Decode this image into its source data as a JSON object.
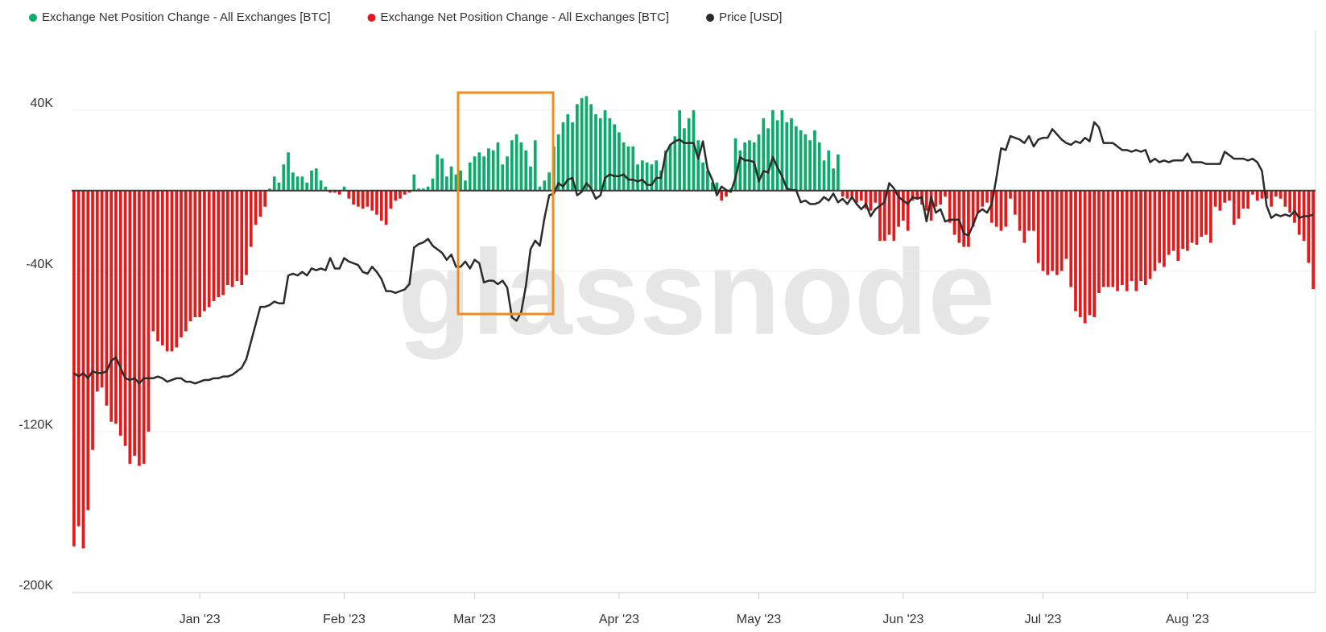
{
  "chart_data": {
    "type": "bar",
    "watermark": "glassnode",
    "ylim": [
      -200000,
      80000
    ],
    "yticks": [
      {
        "value": 40000,
        "label": "40K"
      },
      {
        "value": -40000,
        "label": "-40K"
      },
      {
        "value": -120000,
        "label": "-120K"
      },
      {
        "value": -200000,
        "label": "-200K"
      }
    ],
    "y2lim": [
      4500,
      36800
    ],
    "grid": true,
    "categories": [
      null,
      null,
      null,
      null,
      null,
      null,
      null,
      null,
      null,
      null,
      null,
      null,
      null,
      null,
      null,
      null,
      null,
      null,
      null,
      null,
      null,
      null,
      null,
      null,
      null,
      null,
      null,
      "Jan '23",
      null,
      null,
      null,
      null,
      null,
      null,
      null,
      null,
      null,
      null,
      null,
      null,
      null,
      null,
      null,
      null,
      null,
      null,
      null,
      null,
      null,
      null,
      null,
      null,
      null,
      null,
      null,
      null,
      null,
      null,
      "Feb '23",
      null,
      null,
      null,
      null,
      null,
      null,
      null,
      null,
      null,
      null,
      null,
      null,
      null,
      null,
      null,
      null,
      null,
      null,
      null,
      null,
      null,
      null,
      null,
      null,
      null,
      null,
      null,
      "Mar '23",
      null,
      null,
      null,
      null,
      null,
      null,
      null,
      null,
      null,
      null,
      null,
      null,
      null,
      null,
      null,
      null,
      null,
      null,
      null,
      null,
      null,
      null,
      null,
      null,
      null,
      null,
      null,
      null,
      null,
      null,
      "Apr '23",
      null,
      null,
      null,
      null,
      null,
      null,
      null,
      null,
      null,
      null,
      null,
      null,
      null,
      null,
      null,
      null,
      null,
      null,
      null,
      null,
      null,
      null,
      null,
      null,
      null,
      null,
      null,
      null,
      null,
      "May '23",
      null,
      null,
      null,
      null,
      null,
      null,
      null,
      null,
      null,
      null,
      null,
      null,
      null,
      null,
      null,
      null,
      null,
      null,
      null,
      null,
      null,
      null,
      null,
      null,
      null,
      null,
      null,
      null,
      null,
      null,
      "Jun '23",
      null,
      null,
      null,
      null,
      null,
      null,
      null,
      null,
      null,
      null,
      null,
      null,
      null,
      null,
      null,
      null,
      null,
      null,
      null,
      null,
      null,
      null,
      null,
      null,
      null,
      null,
      null,
      null,
      null,
      "Jul '23",
      null,
      null,
      null,
      null,
      null,
      null,
      null,
      null,
      null,
      null,
      null,
      null,
      null,
      null,
      null,
      null,
      null,
      null,
      null,
      null,
      null,
      null,
      null,
      null,
      null,
      null,
      null,
      null,
      null,
      null,
      "Aug '23",
      null,
      null,
      null,
      null,
      null,
      null,
      null,
      null,
      null,
      null,
      null,
      null,
      null,
      null,
      null,
      null,
      null,
      null,
      null,
      null,
      null,
      null,
      null,
      null,
      null,
      null,
      null
    ],
    "series": [
      {
        "name": "Exchange Net Position Change - All Exchanges [BTC]",
        "color": "#0bab6b",
        "values": [
          null,
          null,
          null,
          null,
          null,
          null,
          null,
          null,
          null,
          null,
          null,
          null,
          null,
          null,
          null,
          null,
          null,
          null,
          null,
          null,
          null,
          null,
          null,
          null,
          null,
          null,
          null,
          null,
          null,
          null,
          null,
          null,
          null,
          null,
          null,
          null,
          null,
          null,
          null,
          null,
          null,
          null,
          1000,
          7000,
          4000,
          13000,
          19000,
          9000,
          7000,
          7000,
          4000,
          10000,
          11000,
          5000,
          2000,
          null,
          null,
          null,
          2000,
          null,
          null,
          null,
          null,
          null,
          null,
          null,
          null,
          null,
          null,
          null,
          null,
          null,
          null,
          8000,
          1000,
          1000,
          2000,
          6000,
          18000,
          16000,
          7000,
          12000,
          8000,
          10000,
          5000,
          14000,
          17000,
          19000,
          17000,
          21000,
          20000,
          24000,
          13000,
          17000,
          25000,
          28000,
          24000,
          20000,
          12000,
          25000,
          2000,
          5000,
          9000,
          22000,
          28000,
          34000,
          38000,
          34000,
          43000,
          46000,
          47000,
          43000,
          38000,
          36000,
          40000,
          36000,
          33000,
          29000,
          24000,
          22000,
          22000,
          13000,
          15000,
          14000,
          13000,
          15000,
          10000,
          20000,
          23000,
          27000,
          40000,
          31000,
          36000,
          40000,
          25000,
          14000,
          10000,
          4000,
          4000,
          null,
          null,
          1000,
          26000,
          20000,
          24000,
          25000,
          24000,
          28000,
          36000,
          31000,
          40000,
          35000,
          40000,
          34000,
          36000,
          32000,
          30000,
          28000,
          25000,
          30000,
          24000,
          15000,
          20000,
          11000,
          18000,
          null,
          null,
          null,
          null,
          null,
          null,
          null,
          null,
          null,
          null,
          null,
          null,
          null,
          null,
          null,
          null,
          null,
          null,
          null,
          null,
          null,
          null,
          null,
          null,
          null,
          null,
          null,
          null,
          null,
          null,
          null,
          null,
          null,
          null,
          null,
          null,
          null,
          null,
          null,
          null,
          null,
          null,
          null,
          null,
          null,
          null,
          null,
          null,
          null,
          null,
          null,
          null,
          null,
          null,
          null,
          null,
          null,
          null,
          null,
          null,
          null,
          null,
          null,
          null,
          null,
          null,
          null,
          null,
          null,
          null,
          null,
          null,
          null,
          null,
          null,
          null,
          null,
          null,
          null,
          null,
          null,
          null,
          null,
          null,
          null,
          null,
          null,
          null,
          null,
          null,
          null,
          null,
          null,
          null,
          null,
          null,
          null,
          null,
          null,
          null,
          null,
          null
        ]
      },
      {
        "name": "Exchange Net Position Change - All Exchanges [BTC]",
        "color": "#e41a1a",
        "values": [
          -177000,
          -167000,
          -178000,
          -159000,
          -129000,
          -100000,
          -98000,
          -107000,
          -115000,
          -116000,
          -122000,
          -127000,
          -136000,
          -132000,
          -137000,
          -136000,
          -120000,
          -70000,
          -75000,
          -77000,
          -80000,
          -80000,
          -78000,
          -73000,
          -70000,
          -65000,
          -63000,
          -63000,
          -60000,
          -58000,
          -55000,
          -53000,
          -52000,
          -47000,
          -48000,
          -45000,
          -47000,
          -42000,
          -28000,
          -17000,
          -13000,
          -8000,
          null,
          null,
          null,
          null,
          null,
          null,
          null,
          null,
          null,
          null,
          null,
          null,
          null,
          -1000,
          -1000,
          -2000,
          null,
          -4000,
          -7000,
          -8000,
          -9000,
          -8000,
          -10000,
          -12000,
          -15000,
          -17000,
          -9000,
          -5000,
          -4000,
          -2000,
          -1000,
          null,
          null,
          null,
          null,
          null,
          null,
          null,
          null,
          null,
          null,
          null,
          null,
          null,
          null,
          null,
          null,
          null,
          null,
          null,
          null,
          null,
          null,
          null,
          null,
          null,
          null,
          null,
          null,
          null,
          null,
          null,
          null,
          null,
          null,
          null,
          null,
          null,
          null,
          null,
          null,
          null,
          null,
          null,
          null,
          null,
          null,
          null,
          null,
          null,
          null,
          null,
          null,
          null,
          null,
          null,
          null,
          null,
          null,
          null,
          null,
          null,
          null,
          null,
          null,
          null,
          null,
          -5000,
          -3000,
          null,
          null,
          null,
          null,
          null,
          null,
          null,
          null,
          null,
          null,
          null,
          null,
          null,
          null,
          null,
          null,
          null,
          null,
          null,
          null,
          null,
          null,
          null,
          null,
          -3000,
          -4000,
          -3000,
          -6000,
          -5000,
          -9000,
          -10000,
          -6000,
          -25000,
          -25000,
          -22000,
          -25000,
          -18000,
          -15000,
          -20000,
          -5000,
          -4000,
          -7000,
          -10000,
          -15000,
          -8000,
          -7000,
          -3000,
          -16000,
          -22000,
          -26000,
          -28000,
          -28000,
          -18000,
          -11000,
          -8000,
          -6000,
          -16000,
          -18000,
          -20000,
          -18000,
          -4000,
          -12000,
          -20000,
          -26000,
          -20000,
          -20000,
          -36000,
          -40000,
          -42000,
          -40000,
          -42000,
          -40000,
          -34000,
          -48000,
          -60000,
          -63000,
          -66000,
          -62000,
          -63000,
          -51000,
          -48000,
          -48000,
          -48000,
          -50000,
          -47000,
          -50000,
          -45000,
          -50000,
          -45000,
          -47000,
          -44000,
          -40000,
          -36000,
          -38000,
          -32000,
          -30000,
          -35000,
          -29000,
          -30000,
          -26000,
          -27000,
          -23000,
          -22000,
          -26000,
          -8000,
          -10000,
          -6000,
          -5000,
          -17000,
          -14000,
          -9000,
          -9000,
          -2000,
          -5000,
          -4000,
          -4000,
          -8000,
          -3000,
          -4000,
          -8000,
          -11000,
          -16000,
          -22000,
          -25000,
          -36000,
          -49000
        ]
      },
      {
        "name": "Price [USD]",
        "color": "#2b2b2b",
        "axis": "y2",
        "values": [
          17100,
          16900,
          17100,
          16800,
          17200,
          17100,
          17100,
          17200,
          17800,
          18000,
          17400,
          16800,
          16700,
          16800,
          16500,
          16800,
          16800,
          16800,
          16900,
          16800,
          16600,
          16700,
          16800,
          16800,
          16600,
          16600,
          16500,
          16600,
          16700,
          16700,
          16800,
          16800,
          16900,
          16900,
          17000,
          17200,
          17400,
          17900,
          18900,
          19900,
          20900,
          20900,
          21000,
          21200,
          21100,
          21100,
          22700,
          22800,
          22700,
          22900,
          22700,
          23100,
          23000,
          23100,
          23000,
          23700,
          23100,
          23100,
          23700,
          23500,
          23400,
          23300,
          22900,
          22800,
          23200,
          22900,
          22500,
          21800,
          21800,
          21700,
          21800,
          21900,
          22200,
          24300,
          24500,
          24600,
          24800,
          24400,
          24200,
          24000,
          23600,
          23900,
          23200,
          23200,
          23500,
          23100,
          23600,
          23400,
          22300,
          22400,
          22400,
          22200,
          22400,
          22000,
          20300,
          20100,
          20600,
          22100,
          24200,
          24700,
          24400,
          26000,
          27300,
          27400,
          28000,
          27800,
          28200,
          28300,
          27300,
          27500,
          28000,
          27700,
          27100,
          27300,
          28300,
          28500,
          28400,
          28400,
          28500,
          28200,
          28200,
          28100,
          28200,
          27900,
          27900,
          28300,
          28300,
          29700,
          30200,
          30400,
          30500,
          30300,
          30300,
          30300,
          29400,
          30400,
          28800,
          28200,
          27300,
          27800,
          27600,
          27500,
          28300,
          29500,
          29300,
          29300,
          29200,
          28100,
          28700,
          28600,
          29500,
          28900,
          28400,
          27700,
          27600,
          27600,
          26900,
          27000,
          26800,
          26800,
          26900,
          27200,
          27000,
          27400,
          26900,
          27100,
          26800,
          27200,
          26800,
          26500,
          26800,
          26100,
          26500,
          26700,
          26900,
          28000,
          27700,
          27200,
          27000,
          26800,
          27200,
          27100,
          27200,
          25800,
          27200,
          26300,
          26500,
          25800,
          25900,
          25900,
          25900,
          25100,
          25000,
          25600,
          26300,
          26500,
          26300,
          26800,
          28300,
          30000,
          29900,
          30700,
          30600,
          30500,
          30300,
          30700,
          30100,
          30500,
          30600,
          30600,
          31100,
          30800,
          30500,
          30300,
          30200,
          30400,
          30300,
          30600,
          30400,
          31500,
          31200,
          30300,
          30300,
          30300,
          30100,
          29900,
          29900,
          29800,
          29900,
          29800,
          29900,
          29200,
          29400,
          29200,
          29300,
          29200,
          29300,
          29300,
          29300,
          29700,
          29200,
          29200,
          29200,
          29100,
          29100,
          29100,
          29100,
          29800,
          29600,
          29400,
          29400,
          29400,
          29300,
          29400,
          29200,
          28700,
          26700,
          26000,
          26200,
          26100,
          26200,
          26100,
          26400,
          26000,
          26100,
          26100,
          26200
        ]
      }
    ]
  }
}
